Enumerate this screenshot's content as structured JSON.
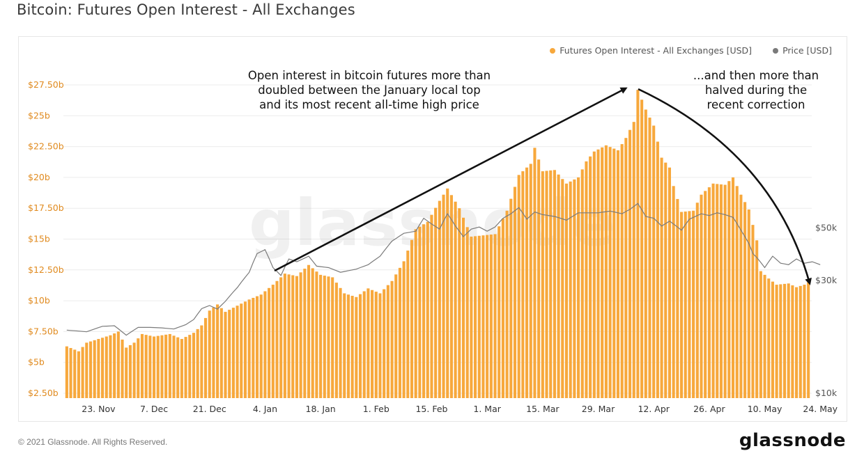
{
  "header": {
    "title": "Bitcoin: Futures Open Interest - All Exchanges"
  },
  "legend": [
    {
      "label": "Futures Open Interest - All Exchanges [USD]",
      "color": "#f7a83c"
    },
    {
      "label": "Price [USD]",
      "color": "#7a7a7a"
    }
  ],
  "annotations": {
    "left": "Open interest in bitcoin futures more than\ndoubled between the January local top\nand its most recent all-time high price",
    "right": "...and then more than\nhalved during the\nrecent correction"
  },
  "watermark": "glassnode",
  "footer": {
    "copyright": "© 2021 Glassnode. All Rights Reserved.",
    "brand": "glassnode"
  },
  "chart_data": {
    "type": "bar",
    "title": "Bitcoin: Futures Open Interest - All Exchanges",
    "x_tick_labels": [
      "23. Nov",
      "7. Dec",
      "21. Dec",
      "4. Jan",
      "18. Jan",
      "1. Feb",
      "15. Feb",
      "1. Mar",
      "15. Mar",
      "29. Mar",
      "12. Apr",
      "26. Apr",
      "10. May",
      "24. May"
    ],
    "y_left": {
      "label": "",
      "ticks": [
        "$2.50b",
        "$5b",
        "$7.50b",
        "$10b",
        "$12.50b",
        "$15b",
        "$17.50b",
        "$20b",
        "$22.50b",
        "$25b",
        "$27.50b"
      ],
      "range": [
        2.5,
        27.5
      ],
      "color": "#e08a1e"
    },
    "y_right": {
      "label": "",
      "scale": "log",
      "ticks": [
        "$10k",
        "$30k",
        "$50k"
      ],
      "tick_values": [
        10000,
        30000,
        50000
      ],
      "color": "#555555"
    },
    "grid": "horizontal",
    "legend_position": "top-right",
    "series": [
      {
        "name": "Futures Open Interest - All Exchanges [USD]",
        "axis": "left",
        "kind": "bar",
        "color": "#f7a83c",
        "anchors": [
          [
            0,
            6.3
          ],
          [
            3,
            5.9
          ],
          [
            5,
            6.6
          ],
          [
            8,
            6.9
          ],
          [
            11,
            7.2
          ],
          [
            13,
            7.5
          ],
          [
            15,
            6.2
          ],
          [
            17,
            6.6
          ],
          [
            19,
            7.3
          ],
          [
            22,
            7.1
          ],
          [
            26,
            7.3
          ],
          [
            29,
            6.9
          ],
          [
            32,
            7.4
          ],
          [
            34,
            8.0
          ],
          [
            36,
            9.2
          ],
          [
            38,
            9.7
          ],
          [
            40,
            9.1
          ],
          [
            43,
            9.6
          ],
          [
            46,
            10.1
          ],
          [
            49,
            10.5
          ],
          [
            52,
            11.3
          ],
          [
            55,
            12.2
          ],
          [
            58,
            12.0
          ],
          [
            61,
            12.9
          ],
          [
            64,
            12.1
          ],
          [
            67,
            11.9
          ],
          [
            70,
            10.6
          ],
          [
            73,
            10.3
          ],
          [
            76,
            11.0
          ],
          [
            79,
            10.6
          ],
          [
            82,
            11.6
          ],
          [
            85,
            13.2
          ],
          [
            88,
            15.8
          ],
          [
            91,
            16.4
          ],
          [
            94,
            18.1
          ],
          [
            96,
            19.1
          ],
          [
            99,
            17.5
          ],
          [
            102,
            15.2
          ],
          [
            105,
            15.3
          ],
          [
            108,
            15.4
          ],
          [
            111,
            17.3
          ],
          [
            114,
            20.2
          ],
          [
            117,
            21.1
          ],
          [
            118,
            22.4
          ],
          [
            120,
            20.5
          ],
          [
            123,
            20.6
          ],
          [
            126,
            19.5
          ],
          [
            129,
            20.0
          ],
          [
            131,
            21.3
          ],
          [
            133,
            22.1
          ],
          [
            136,
            22.6
          ],
          [
            139,
            22.2
          ],
          [
            141,
            23.2
          ],
          [
            143,
            24.5
          ],
          [
            144,
            27.1
          ],
          [
            146,
            25.5
          ],
          [
            148,
            24.2
          ],
          [
            150,
            21.6
          ],
          [
            152,
            20.8
          ],
          [
            153,
            19.3
          ],
          [
            155,
            17.2
          ],
          [
            158,
            17.3
          ],
          [
            160,
            18.6
          ],
          [
            163,
            19.5
          ],
          [
            166,
            19.4
          ],
          [
            168,
            20.0
          ],
          [
            170,
            18.6
          ],
          [
            172,
            17.4
          ],
          [
            174,
            14.9
          ],
          [
            175,
            12.4
          ],
          [
            177,
            11.8
          ],
          [
            179,
            11.3
          ],
          [
            182,
            11.4
          ],
          [
            184,
            11.1
          ],
          [
            186,
            11.3
          ],
          [
            187,
            11.5
          ]
        ]
      },
      {
        "name": "Price [USD]",
        "axis": "right",
        "kind": "line",
        "color": "#7a7a7a",
        "anchors": [
          [
            0,
            18500
          ],
          [
            5,
            18200
          ],
          [
            9,
            19200
          ],
          [
            12,
            19300
          ],
          [
            15,
            17600
          ],
          [
            18,
            19000
          ],
          [
            21,
            19000
          ],
          [
            24,
            18900
          ],
          [
            27,
            18700
          ],
          [
            30,
            19500
          ],
          [
            32,
            20500
          ],
          [
            34,
            22800
          ],
          [
            36,
            23500
          ],
          [
            38,
            22700
          ],
          [
            40,
            24500
          ],
          [
            43,
            28000
          ],
          [
            46,
            32500
          ],
          [
            48,
            39000
          ],
          [
            50,
            40500
          ],
          [
            52,
            34000
          ],
          [
            54,
            31500
          ],
          [
            56,
            37000
          ],
          [
            58,
            36000
          ],
          [
            61,
            38000
          ],
          [
            63,
            34500
          ],
          [
            66,
            34000
          ],
          [
            69,
            32500
          ],
          [
            73,
            33500
          ],
          [
            76,
            35000
          ],
          [
            79,
            38000
          ],
          [
            82,
            44000
          ],
          [
            85,
            47500
          ],
          [
            88,
            48500
          ],
          [
            90,
            55000
          ],
          [
            92,
            52000
          ],
          [
            94,
            49500
          ],
          [
            96,
            57500
          ],
          [
            98,
            51000
          ],
          [
            100,
            46000
          ],
          [
            102,
            49500
          ],
          [
            104,
            50500
          ],
          [
            106,
            48500
          ],
          [
            108,
            50500
          ],
          [
            110,
            55000
          ],
          [
            112,
            57500
          ],
          [
            114,
            61000
          ],
          [
            116,
            54500
          ],
          [
            118,
            58500
          ],
          [
            120,
            57000
          ],
          [
            123,
            56000
          ],
          [
            126,
            54000
          ],
          [
            129,
            58000
          ],
          [
            132,
            58000
          ],
          [
            134,
            58000
          ],
          [
            137,
            59000
          ],
          [
            140,
            57500
          ],
          [
            142,
            60000
          ],
          [
            144,
            63500
          ],
          [
            146,
            56000
          ],
          [
            148,
            55000
          ],
          [
            150,
            51000
          ],
          [
            152,
            53500
          ],
          [
            155,
            49000
          ],
          [
            157,
            54500
          ],
          [
            160,
            57500
          ],
          [
            162,
            56500
          ],
          [
            164,
            58000
          ],
          [
            166,
            57000
          ],
          [
            168,
            55500
          ],
          [
            170,
            49000
          ],
          [
            172,
            43000
          ],
          [
            173,
            39000
          ],
          [
            174,
            37500
          ],
          [
            176,
            34000
          ],
          [
            178,
            38000
          ],
          [
            180,
            35500
          ],
          [
            182,
            35000
          ],
          [
            184,
            37000
          ],
          [
            186,
            35500
          ],
          [
            188,
            36000
          ],
          [
            190,
            35000
          ]
        ]
      }
    ]
  }
}
